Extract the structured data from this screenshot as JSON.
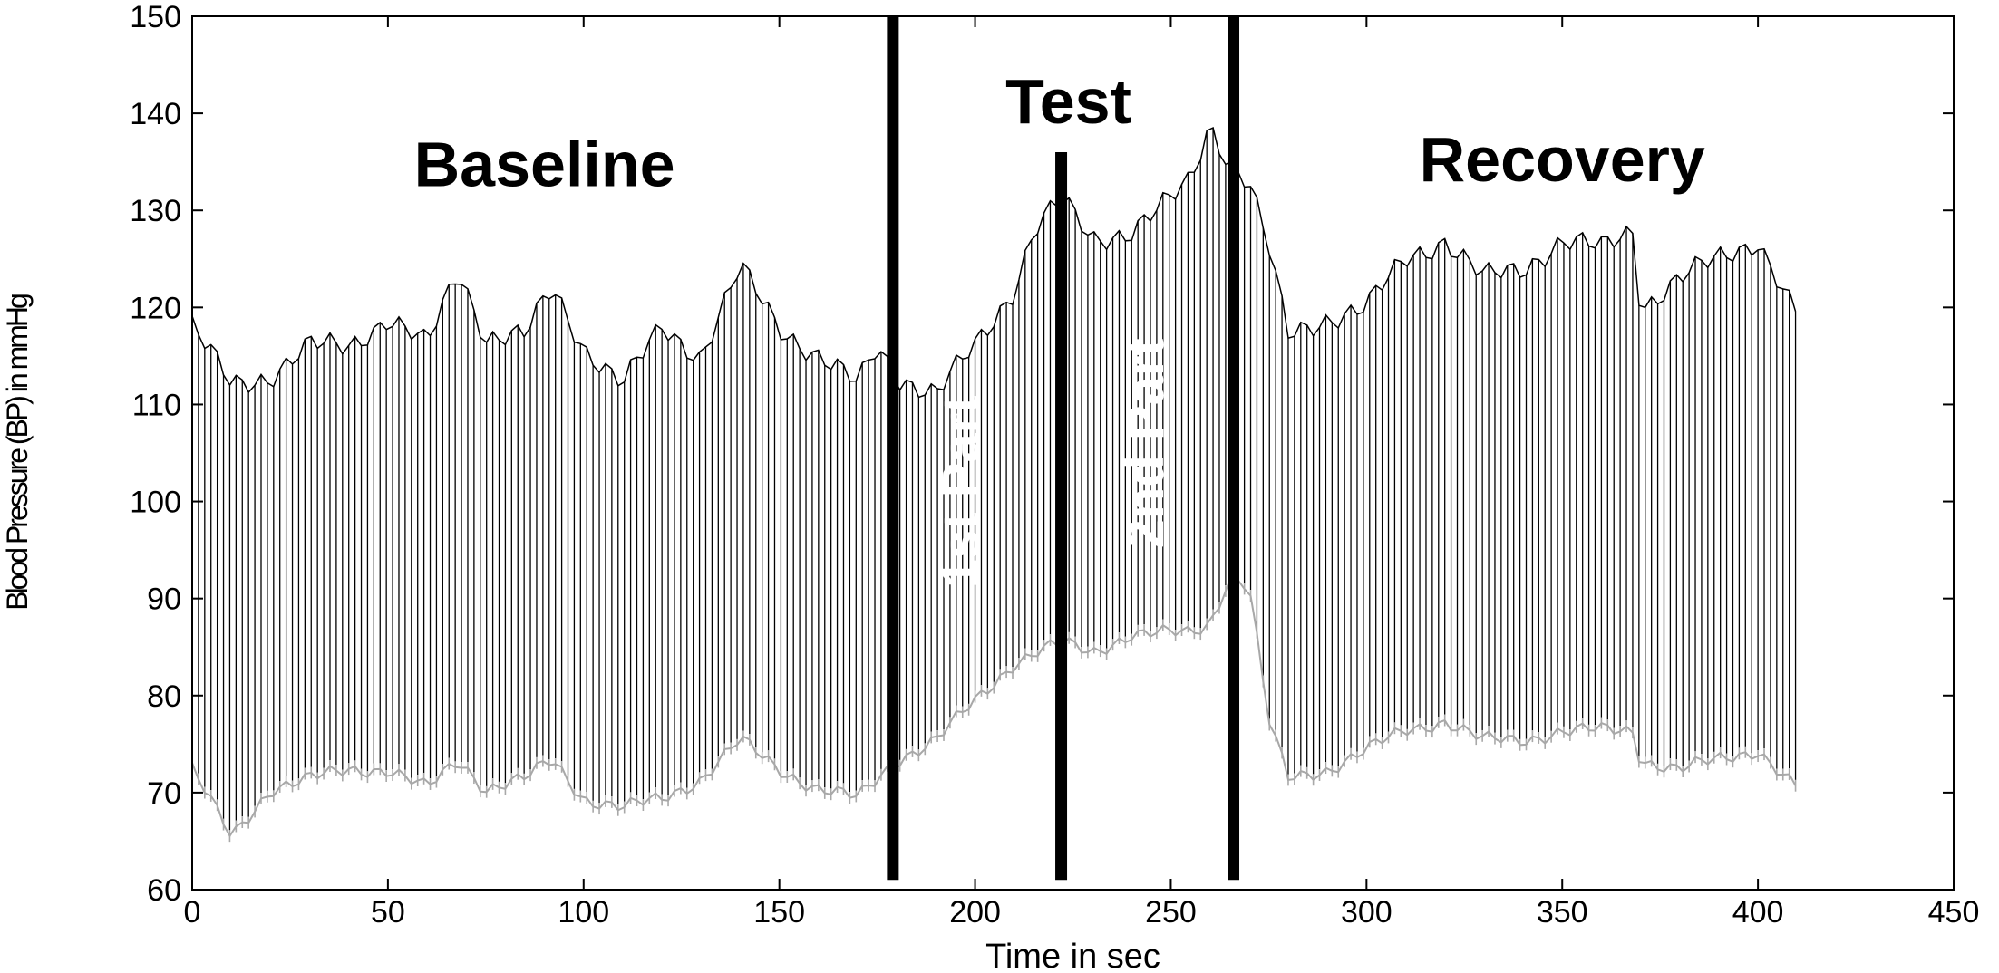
{
  "chart_data": {
    "type": "line",
    "title": "",
    "xlabel": "Time in sec",
    "ylabel": "Blood Pressure (BP) in mmHg",
    "xlim": [
      0,
      450
    ],
    "ylim": [
      60,
      150
    ],
    "xticks": [
      0,
      50,
      100,
      150,
      200,
      250,
      300,
      350,
      400,
      450
    ],
    "yticks": [
      60,
      70,
      80,
      90,
      100,
      110,
      120,
      130,
      140,
      150
    ],
    "xtick_labels": [
      "0",
      "50",
      "100",
      "150",
      "200",
      "250",
      "300",
      "350",
      "400",
      "450"
    ],
    "ytick_labels": [
      "60",
      "70",
      "80",
      "90",
      "100",
      "110",
      "120",
      "130",
      "140",
      "150"
    ],
    "grid": false,
    "colors": {
      "systolic": "#000000",
      "diastolic": "#a8a8a8",
      "beat": "#000000"
    },
    "phase_boundaries": [
      {
        "x": 179,
        "y_range": [
          61,
          150
        ]
      },
      {
        "x": 222,
        "y_range": [
          61,
          136
        ]
      },
      {
        "x": 266,
        "y_range": [
          61,
          150
        ]
      }
    ],
    "phase_labels": {
      "baseline": {
        "text": "Baseline",
        "x": 90,
        "y": 132.5
      },
      "test": {
        "text": "Test",
        "x": 222,
        "y": 139
      },
      "recovery": {
        "text": "Recovery",
        "x": 350,
        "y": 133
      },
      "part1": {
        "text": "1st Part",
        "x": 201,
        "y": 101
      },
      "part2": {
        "text": "2nd Part",
        "x": 248,
        "y": 106
      }
    },
    "series": [
      {
        "x": [
          0,
          10,
          20,
          30,
          40,
          50,
          60,
          68,
          75,
          85,
          92,
          100,
          110,
          120,
          130,
          140,
          150,
          160,
          170,
          175,
          180,
          190,
          200,
          210,
          215,
          222,
          230,
          240,
          250,
          255,
          260,
          265,
          270,
          275,
          280,
          290,
          300,
          310,
          320,
          330,
          340,
          350,
          360,
          368,
          370,
          380,
          390,
          400,
          410
        ],
        "values": [
          118,
          112,
          113,
          116,
          116,
          119,
          116,
          124,
          117,
          117,
          122,
          116,
          112,
          118,
          115,
          124,
          118,
          115,
          112,
          116,
          113,
          111,
          116,
          122,
          128,
          131,
          127,
          128,
          131,
          133,
          139,
          135,
          133,
          126,
          117,
          119,
          120,
          125,
          127,
          123,
          124,
          127,
          126,
          128,
          120,
          123,
          125,
          127,
          119
        ]
      },
      {
        "x": [
          0,
          10,
          20,
          30,
          40,
          50,
          60,
          68,
          75,
          85,
          92,
          100,
          110,
          120,
          130,
          140,
          150,
          160,
          170,
          175,
          180,
          190,
          200,
          210,
          215,
          222,
          230,
          240,
          250,
          255,
          260,
          265,
          270,
          275,
          280,
          290,
          300,
          310,
          320,
          330,
          340,
          350,
          360,
          368,
          370,
          380,
          390,
          400,
          410
        ],
        "values": [
          73,
          66,
          71,
          72,
          73,
          73,
          71,
          74,
          71,
          72,
          74,
          70,
          69,
          70,
          72,
          76,
          73,
          71,
          70,
          72,
          74,
          76,
          80,
          84,
          85,
          86,
          85,
          87,
          87,
          87,
          88,
          93,
          92,
          78,
          72,
          73,
          75,
          77,
          78,
          76,
          76,
          77,
          77,
          77,
          74,
          73,
          74,
          75,
          71
        ]
      }
    ]
  }
}
